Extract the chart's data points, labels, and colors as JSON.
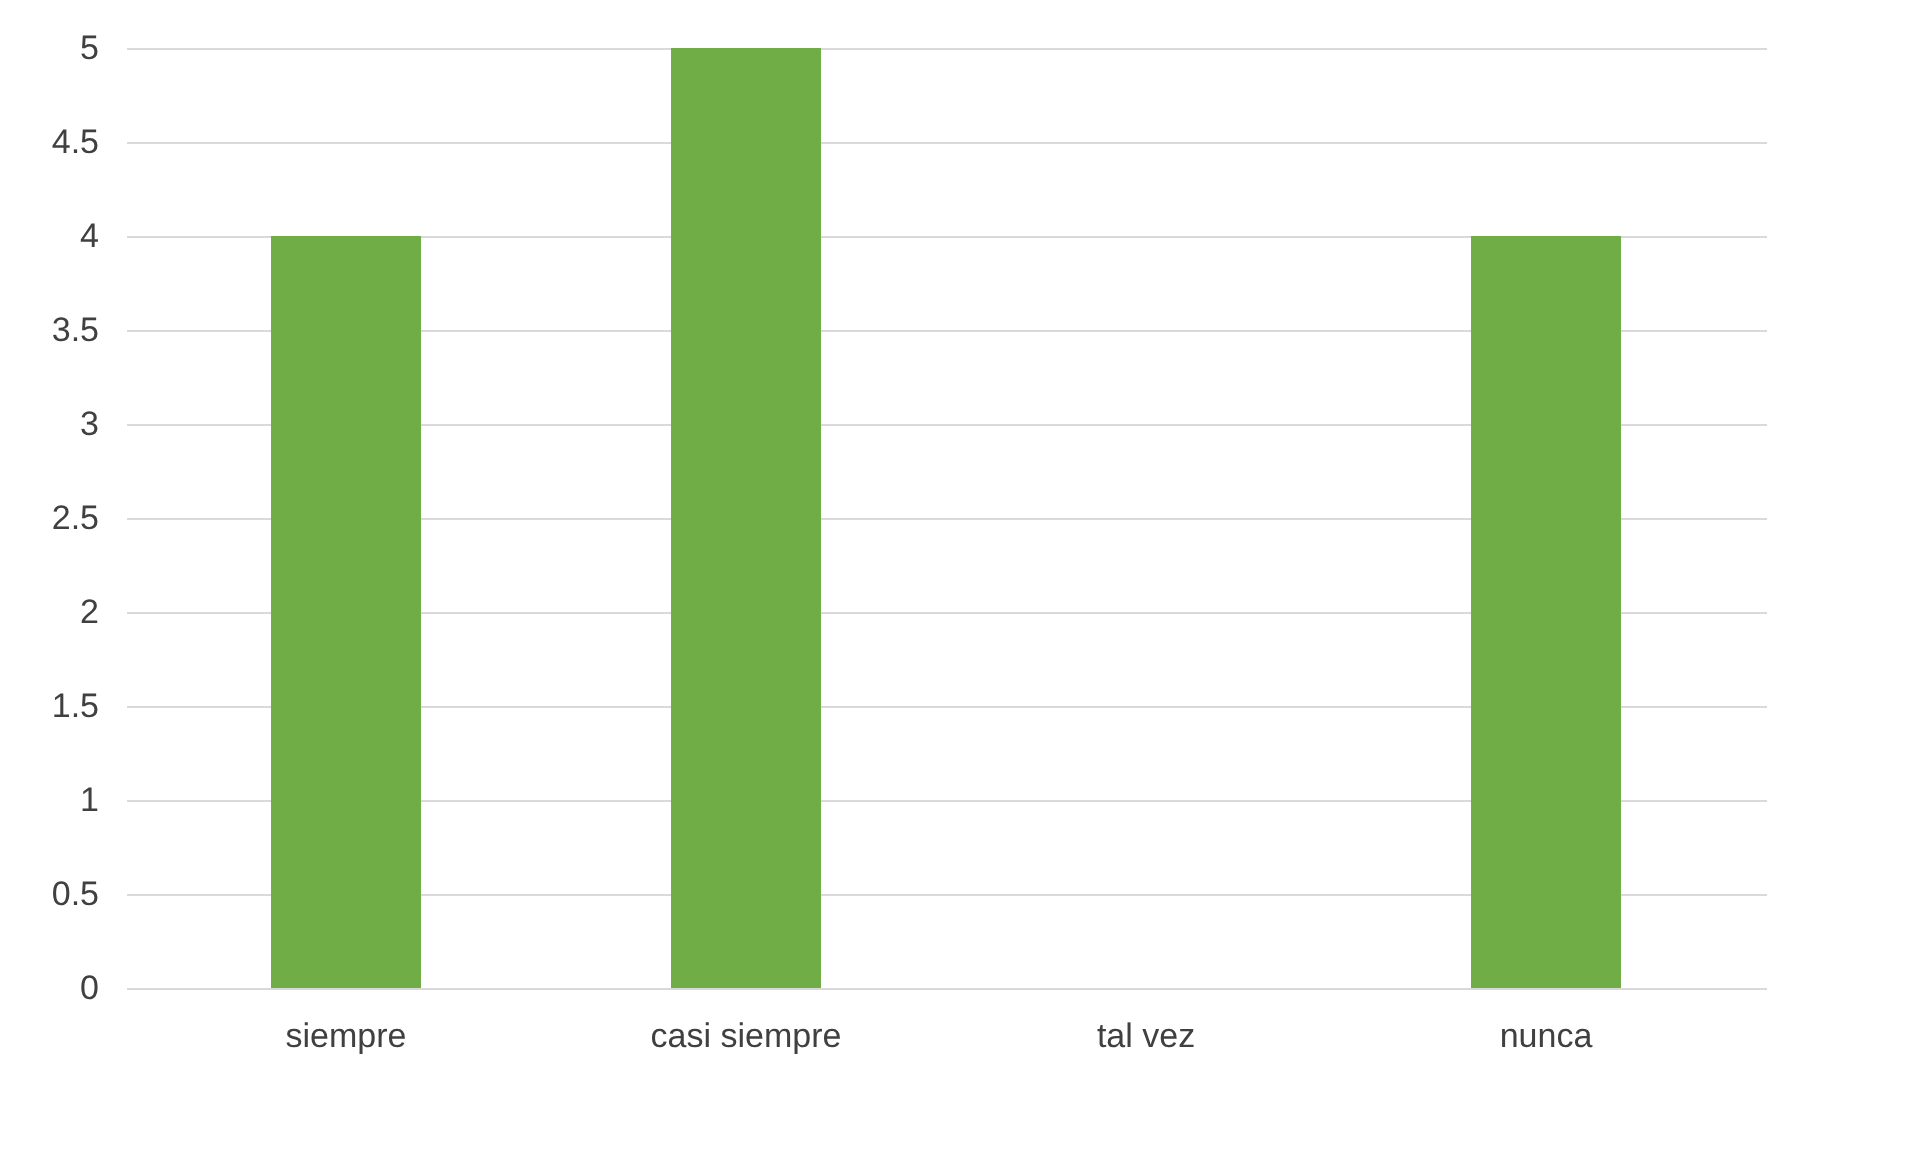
{
  "chart_data": {
    "type": "bar",
    "categories": [
      "siempre",
      "casi siempre",
      "tal vez",
      "nunca"
    ],
    "values": [
      4,
      5,
      0,
      4
    ],
    "color": "#70ad47",
    "ylim": [
      0,
      5
    ],
    "yticks": [
      0,
      0.5,
      1,
      1.5,
      2,
      2.5,
      3,
      3.5,
      4,
      4.5,
      5
    ],
    "grid": "y"
  }
}
